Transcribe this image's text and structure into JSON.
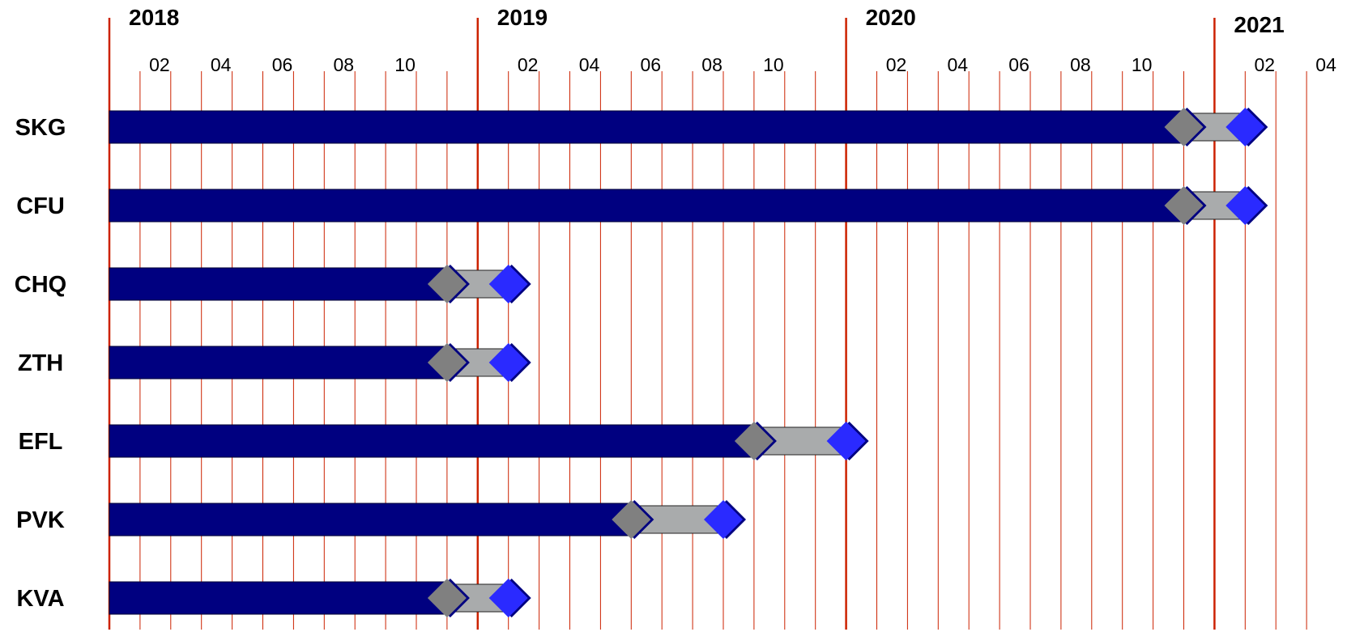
{
  "colors": {
    "gridline": "#cc2200",
    "bar": "#000080",
    "bar_stroke": "#000033",
    "extension": "#a9abac",
    "extension_stroke": "#222222",
    "marker_start": "#808080",
    "marker_end": "#2a2aff",
    "marker_shadow": "#000080"
  },
  "chart_data": {
    "type": "gantt",
    "time_unit": "month",
    "x_range": [
      "2018-01",
      "2021-04"
    ],
    "year_labels": [
      {
        "text": "2018",
        "month": "2018-01"
      },
      {
        "text": "2019",
        "month": "2019-01"
      },
      {
        "text": "2020",
        "month": "2020-01"
      },
      {
        "text": "2021",
        "month": "2021-01"
      }
    ],
    "month_labels": [
      {
        "text": "02",
        "month": "2018-02"
      },
      {
        "text": "04",
        "month": "2018-04"
      },
      {
        "text": "06",
        "month": "2018-06"
      },
      {
        "text": "08",
        "month": "2018-08"
      },
      {
        "text": "10",
        "month": "2018-10"
      },
      {
        "text": "02",
        "month": "2019-02"
      },
      {
        "text": "04",
        "month": "2019-04"
      },
      {
        "text": "06",
        "month": "2019-06"
      },
      {
        "text": "08",
        "month": "2019-08"
      },
      {
        "text": "10",
        "month": "2019-10"
      },
      {
        "text": "02",
        "month": "2020-02"
      },
      {
        "text": "04",
        "month": "2020-04"
      },
      {
        "text": "06",
        "month": "2020-06"
      },
      {
        "text": "08",
        "month": "2020-08"
      },
      {
        "text": "10",
        "month": "2020-10"
      },
      {
        "text": "02",
        "month": "2021-02"
      },
      {
        "text": "04",
        "month": "2021-04"
      }
    ],
    "rows": [
      {
        "label": "SKG",
        "start": "2018-01",
        "milestone_1": "2020-12",
        "milestone_2": "2021-02"
      },
      {
        "label": "CFU",
        "start": "2018-01",
        "milestone_1": "2020-12",
        "milestone_2": "2021-02"
      },
      {
        "label": "CHQ",
        "start": "2018-01",
        "milestone_1": "2018-12",
        "milestone_2": "2019-02"
      },
      {
        "label": "ZTH",
        "start": "2018-01",
        "milestone_1": "2018-12",
        "milestone_2": "2019-02"
      },
      {
        "label": "EFL",
        "start": "2018-01",
        "milestone_1": "2019-10",
        "milestone_2": "2020-01"
      },
      {
        "label": "PVK",
        "start": "2018-01",
        "milestone_1": "2019-06",
        "milestone_2": "2019-09"
      },
      {
        "label": "KVA",
        "start": "2018-01",
        "milestone_1": "2018-12",
        "milestone_2": "2019-02"
      }
    ],
    "grid": true,
    "legend": "none"
  }
}
